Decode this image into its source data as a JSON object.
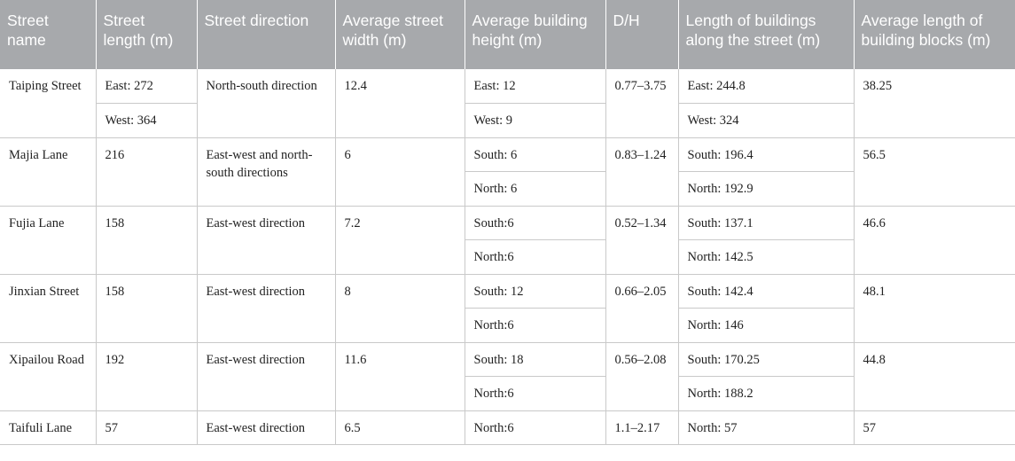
{
  "headers": [
    "Street name",
    "Street length (m)",
    "Street direction",
    "Average street width (m)",
    "Average building height (m)",
    "D/H",
    "Length of buildings along the street (m)",
    "Average length of building blocks (m)"
  ],
  "rows": [
    {
      "name": "Taiping Street",
      "length_a": "East: 272",
      "length_b": "West: 364",
      "direction": "North-south direction",
      "width": "12.4",
      "height_a": "East: 12",
      "height_b": "West: 9",
      "dh": "0.77–3.75",
      "blen_a": "East: 244.8",
      "blen_b": "West: 324",
      "block": "38.25"
    },
    {
      "name": "Majia Lane",
      "length": "216",
      "direction": "East-west and north-south directions",
      "width": "6",
      "height_a": "South: 6",
      "height_b": "North: 6",
      "dh": "0.83–1.24",
      "blen_a": "South: 196.4",
      "blen_b": "North: 192.9",
      "block": "56.5"
    },
    {
      "name": "Fujia Lane",
      "length": "158",
      "direction": "East-west direction",
      "width": "7.2",
      "height_a": "South:6",
      "height_b": "North:6",
      "dh": "0.52–1.34",
      "blen_a": "South: 137.1",
      "blen_b": "North: 142.5",
      "block": "46.6"
    },
    {
      "name": "Jinxian Street",
      "length": "158",
      "direction": "East-west direction",
      "width": "8",
      "height_a": "South: 12",
      "height_b": "North:6",
      "dh": "0.66–2.05",
      "blen_a": "South: 142.4",
      "blen_b": "North: 146",
      "block": "48.1"
    },
    {
      "name": "Xipailou Road",
      "length": "192",
      "direction": "East-west direction",
      "width": "11.6",
      "height_a": "South: 18",
      "height_b": "North:6",
      "dh": "0.56–2.08",
      "blen_a": "South: 170.25",
      "blen_b": "North: 188.2",
      "block": "44.8"
    },
    {
      "name": "Taifuli Lane",
      "length": "57",
      "direction": "East-west direction",
      "width": "6.5",
      "height": "North:6",
      "dh": "1.1–2.17",
      "blen": "North: 57",
      "block": "57"
    }
  ]
}
